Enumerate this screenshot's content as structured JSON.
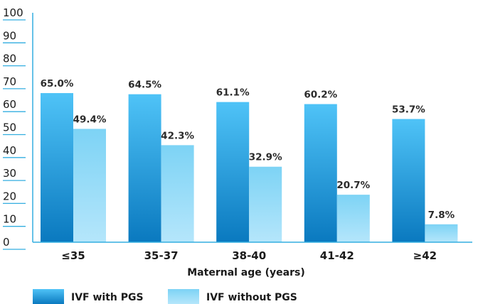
{
  "chart_data": {
    "type": "bar",
    "categories": [
      "≤35",
      "35-37",
      "38-40",
      "41-42",
      "≥42"
    ],
    "series": [
      {
        "name": "IVF with PGS",
        "values": [
          65.0,
          64.5,
          61.1,
          60.2,
          53.7
        ],
        "labels": [
          "65.0%",
          "64.5%",
          "61.1%",
          "60.2%",
          "53.7%"
        ]
      },
      {
        "name": "IVF without PGS",
        "values": [
          49.4,
          42.3,
          32.9,
          20.7,
          7.8
        ],
        "labels": [
          "49.4%",
          "42.3%",
          "32.9%",
          "20.7%",
          "7.8%"
        ]
      }
    ],
    "xlabel": "Maternal age (years)",
    "ylabel": "",
    "ylim": [
      0,
      100
    ],
    "yticks": [
      0,
      10,
      20,
      30,
      40,
      50,
      60,
      70,
      80,
      90,
      100
    ],
    "grid": false,
    "legend": "bottom-left",
    "colors": {
      "series0_top": "#4fc3f7",
      "series0_bottom": "#0a79bf",
      "series1_top": "#7dd3f5",
      "series1_bottom": "#b5e6fb",
      "axis": "#33aee0"
    }
  }
}
